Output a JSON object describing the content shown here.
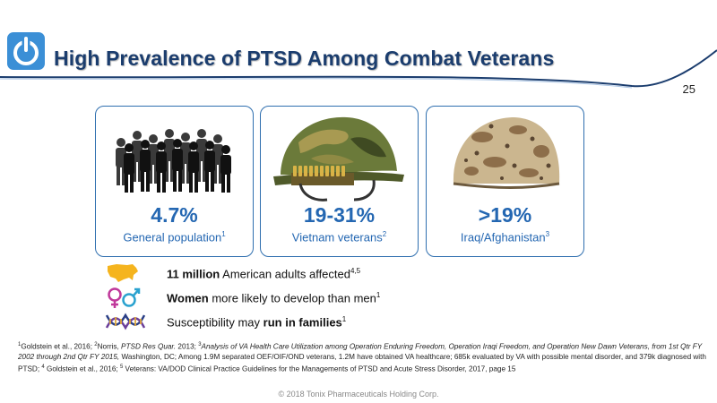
{
  "header": {
    "title": "High Prevalence of PTSD Among Combat Veterans",
    "page_number": "25"
  },
  "cards": [
    {
      "stat": "4.7%",
      "label": "General population",
      "ref": "1",
      "image": "crowd-silhouette-icon"
    },
    {
      "stat": "19-31%",
      "label": "Vietnam veterans",
      "ref": "2",
      "image": "vietnam-helmet-icon"
    },
    {
      "stat": ">19%",
      "label": "Iraq/Afghanistan",
      "ref": "3",
      "image": "desert-camo-helmet-icon"
    }
  ],
  "facts": [
    {
      "icon": "usa-map-icon",
      "bold": "11 million",
      "text": " American adults affected",
      "ref": "4,5"
    },
    {
      "icon": "gender-symbols-icon",
      "bold": "Women",
      "text": " more likely to develop than men",
      "ref": "1"
    },
    {
      "icon": "dna-helix-icon",
      "pre": "Susceptibility may ",
      "bold": "run in families",
      "ref": "1"
    }
  ],
  "references": {
    "r1_sup": "1",
    "r1_text": "Goldstein et al., 2016;  ",
    "r2_sup": "2",
    "r2_text": "Norris, ",
    "r2_journal": "PTSD Res Quar.",
    "r2_year": " 2013;  ",
    "r3_sup": "3",
    "r3_title": "Analysis of VA Health Care Utilization among Operation Enduring Freedom, Operation Iraqi Freedom, and Operation New Dawn Veterans, from 1st Qtr FY 2002 through 2nd Qtr FY 2015,",
    "r3_text": " Washington, DC; Among 1.9M separated OEF/OIF/OND veterans, 1.2M have obtained VA healthcare; 685k evaluated by VA with possible mental disorder, and 379k diagnosed with PTSD; ",
    "r4_sup": "4",
    "r4_text": " Goldstein et al., 2016; ",
    "r5_sup": "5",
    "r5_text": " Veterans: VA/DOD Clinical Practice Guidelines for the Managements of PTSD and Acute Stress Disorder, 2017, page 15"
  },
  "footer": {
    "copyright": "© 2018 Tonix Pharmaceuticals Holding Corp."
  },
  "colors": {
    "brand": "#1b3d6e",
    "accent": "#2467b2",
    "logo": "#3b8fd6"
  }
}
